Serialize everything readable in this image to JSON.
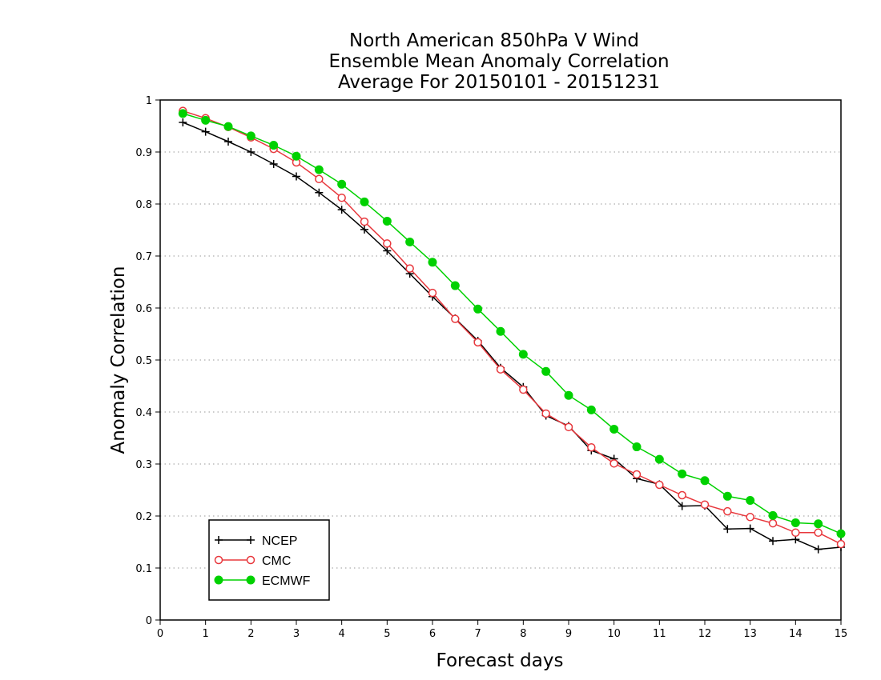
{
  "chart_data": {
    "type": "line",
    "title": [
      "North American 850hPa V Wind",
      "Ensemble Mean Anomaly Correlation",
      "Average For 20150101 - 20151231"
    ],
    "xlabel": "Forecast days",
    "ylabel": "Anomaly Correlation",
    "xlim": [
      0,
      15
    ],
    "ylim": [
      0,
      1
    ],
    "x_ticks": [
      "0",
      "1",
      "2",
      "3",
      "4",
      "5",
      "6",
      "7",
      "8",
      "9",
      "10",
      "11",
      "12",
      "13",
      "14",
      "15"
    ],
    "y_ticks": [
      "0",
      "0.1",
      "0.2",
      "0.3",
      "0.4",
      "0.5",
      "0.6",
      "0.7",
      "0.8",
      "0.9",
      "1"
    ],
    "grid": "horizontal dotted",
    "legend_position": "bottom-left",
    "x": [
      0.5,
      1,
      1.5,
      2,
      2.5,
      3,
      3.5,
      4,
      4.5,
      5,
      5.5,
      6,
      6.5,
      7,
      7.5,
      8,
      8.5,
      9,
      9.5,
      10,
      10.5,
      11,
      11.5,
      12,
      12.5,
      13,
      13.5,
      14,
      14.5,
      15
    ],
    "series": [
      {
        "name": "NCEP",
        "color": "#000000",
        "marker": "plus",
        "values": [
          0.957,
          0.939,
          0.92,
          0.9,
          0.877,
          0.853,
          0.822,
          0.789,
          0.751,
          0.71,
          0.666,
          0.622,
          0.58,
          0.537,
          0.485,
          0.448,
          0.393,
          0.373,
          0.326,
          0.31,
          0.272,
          0.261,
          0.219,
          0.22,
          0.175,
          0.176,
          0.152,
          0.155,
          0.136,
          0.14
        ]
      },
      {
        "name": "CMC",
        "color": "#e8383d",
        "marker": "open-circle",
        "values": [
          0.979,
          0.965,
          0.948,
          0.928,
          0.906,
          0.88,
          0.848,
          0.812,
          0.766,
          0.724,
          0.676,
          0.629,
          0.579,
          0.534,
          0.482,
          0.443,
          0.397,
          0.371,
          0.332,
          0.301,
          0.28,
          0.26,
          0.24,
          0.222,
          0.209,
          0.198,
          0.186,
          0.168,
          0.168,
          0.146
        ]
      },
      {
        "name": "ECMWF",
        "color": "#00d100",
        "marker": "filled-circle",
        "values": [
          0.974,
          0.961,
          0.949,
          0.931,
          0.913,
          0.892,
          0.866,
          0.838,
          0.804,
          0.767,
          0.727,
          0.688,
          0.643,
          0.598,
          0.555,
          0.511,
          0.478,
          0.432,
          0.404,
          0.367,
          0.333,
          0.309,
          0.281,
          0.268,
          0.238,
          0.23,
          0.201,
          0.187,
          0.185,
          0.166
        ]
      }
    ]
  }
}
